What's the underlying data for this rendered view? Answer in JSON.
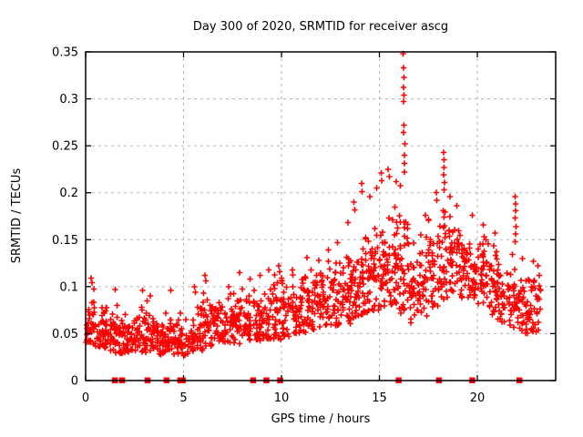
{
  "title": "Day 300 of 2020, SRMTID for receiver ascg",
  "colors": {
    "marker": "#ff0000",
    "grid": "#b3b3b3",
    "axis": "#000000",
    "background": "#ffffff",
    "text": "#000000"
  },
  "chart_data": {
    "type": "scatter",
    "title": "Day 300 of 2020, SRMTID for receiver ascg",
    "xlabel": "GPS time / hours",
    "ylabel": "SRMTID / TECUs",
    "xlim": [
      0,
      24
    ],
    "ylim": [
      0,
      0.35
    ],
    "xticks": [
      0,
      5,
      10,
      15,
      20
    ],
    "xtick_labels": [
      "0",
      "5",
      "10",
      "15",
      "20"
    ],
    "yticks": [
      0,
      0.05,
      0.1,
      0.15,
      0.2,
      0.25,
      0.3,
      0.35
    ],
    "ytick_labels": [
      "0",
      "0.05",
      "0.1",
      "0.15",
      "0.2",
      "0.25",
      "0.3",
      "0.35"
    ],
    "grid": true,
    "legend": "none",
    "marker": "plus",
    "marker_color": "#ff0000",
    "seed": 300,
    "density_bins": [
      [
        0.0,
        0.5,
        34,
        0.038,
        0.098,
        0.058
      ],
      [
        0.5,
        1.0,
        34,
        0.034,
        0.085,
        0.052
      ],
      [
        1.0,
        1.5,
        32,
        0.03,
        0.078,
        0.048
      ],
      [
        1.5,
        2.0,
        36,
        0.028,
        0.082,
        0.047
      ],
      [
        2.0,
        2.5,
        32,
        0.03,
        0.072,
        0.046
      ],
      [
        2.5,
        3.0,
        32,
        0.03,
        0.082,
        0.049
      ],
      [
        3.0,
        3.5,
        34,
        0.03,
        0.088,
        0.05
      ],
      [
        3.5,
        4.0,
        32,
        0.027,
        0.072,
        0.044
      ],
      [
        4.0,
        4.5,
        33,
        0.03,
        0.082,
        0.048
      ],
      [
        4.5,
        5.0,
        32,
        0.026,
        0.075,
        0.044
      ],
      [
        5.0,
        5.5,
        28,
        0.026,
        0.066,
        0.042
      ],
      [
        5.5,
        6.0,
        30,
        0.032,
        0.092,
        0.052
      ],
      [
        6.0,
        6.5,
        31,
        0.036,
        0.104,
        0.06
      ],
      [
        6.5,
        7.0,
        31,
        0.04,
        0.098,
        0.062
      ],
      [
        7.0,
        7.5,
        31,
        0.04,
        0.094,
        0.06
      ],
      [
        7.5,
        8.0,
        33,
        0.038,
        0.106,
        0.062
      ],
      [
        8.0,
        8.5,
        33,
        0.04,
        0.1,
        0.064
      ],
      [
        8.5,
        9.0,
        33,
        0.042,
        0.104,
        0.066
      ],
      [
        9.0,
        9.5,
        33,
        0.044,
        0.11,
        0.068
      ],
      [
        9.5,
        10.0,
        33,
        0.042,
        0.115,
        0.068
      ],
      [
        10.0,
        10.5,
        33,
        0.046,
        0.11,
        0.07
      ],
      [
        10.5,
        11.0,
        33,
        0.05,
        0.115,
        0.074
      ],
      [
        11.0,
        11.5,
        33,
        0.05,
        0.12,
        0.078
      ],
      [
        11.5,
        12.0,
        33,
        0.054,
        0.125,
        0.082
      ],
      [
        12.0,
        12.5,
        33,
        0.056,
        0.13,
        0.086
      ],
      [
        12.5,
        13.0,
        33,
        0.058,
        0.136,
        0.09
      ],
      [
        13.0,
        13.5,
        34,
        0.06,
        0.142,
        0.094
      ],
      [
        13.5,
        14.0,
        35,
        0.064,
        0.152,
        0.1
      ],
      [
        14.0,
        14.5,
        35,
        0.07,
        0.162,
        0.108
      ],
      [
        14.5,
        15.0,
        35,
        0.074,
        0.172,
        0.112
      ],
      [
        15.0,
        15.5,
        37,
        0.078,
        0.192,
        0.12
      ],
      [
        15.5,
        16.0,
        37,
        0.08,
        0.202,
        0.126
      ],
      [
        16.0,
        16.5,
        37,
        0.07,
        0.222,
        0.122
      ],
      [
        16.5,
        17.0,
        32,
        0.06,
        0.16,
        0.1
      ],
      [
        17.0,
        17.5,
        32,
        0.068,
        0.172,
        0.108
      ],
      [
        17.5,
        18.0,
        33,
        0.078,
        0.182,
        0.116
      ],
      [
        18.0,
        18.5,
        35,
        0.086,
        0.2,
        0.126
      ],
      [
        18.5,
        19.0,
        35,
        0.09,
        0.188,
        0.13
      ],
      [
        19.0,
        19.5,
        33,
        0.088,
        0.172,
        0.124
      ],
      [
        19.5,
        20.0,
        33,
        0.084,
        0.166,
        0.118
      ],
      [
        20.0,
        20.5,
        33,
        0.078,
        0.156,
        0.112
      ],
      [
        20.5,
        21.0,
        31,
        0.07,
        0.15,
        0.104
      ],
      [
        21.0,
        21.5,
        30,
        0.062,
        0.14,
        0.094
      ],
      [
        21.5,
        22.0,
        30,
        0.056,
        0.136,
        0.088
      ],
      [
        22.0,
        22.5,
        30,
        0.05,
        0.122,
        0.078
      ],
      [
        22.5,
        23.0,
        31,
        0.046,
        0.124,
        0.076
      ],
      [
        23.0,
        23.2,
        14,
        0.05,
        0.12,
        0.08
      ]
    ],
    "outliers": [
      [
        0.28,
        0.109
      ],
      [
        0.33,
        0.104
      ],
      [
        1.5,
        0.097
      ],
      [
        2.9,
        0.096
      ],
      [
        3.3,
        0.09
      ],
      [
        4.35,
        0.096
      ],
      [
        5.55,
        0.1
      ],
      [
        5.6,
        0.094
      ],
      [
        6.1,
        0.112
      ],
      [
        6.15,
        0.106
      ],
      [
        7.3,
        0.1
      ],
      [
        7.85,
        0.115
      ],
      [
        8.4,
        0.108
      ],
      [
        8.9,
        0.112
      ],
      [
        9.35,
        0.118
      ],
      [
        9.85,
        0.122
      ],
      [
        9.9,
        0.116
      ],
      [
        10.55,
        0.118
      ],
      [
        11.3,
        0.131
      ],
      [
        11.9,
        0.128
      ],
      [
        12.4,
        0.139
      ],
      [
        12.85,
        0.147
      ],
      [
        13.4,
        0.168
      ],
      [
        13.7,
        0.19
      ],
      [
        13.75,
        0.182
      ],
      [
        14.1,
        0.21
      ],
      [
        14.12,
        0.201
      ],
      [
        14.5,
        0.196
      ],
      [
        14.85,
        0.205
      ],
      [
        15.1,
        0.221
      ],
      [
        15.12,
        0.213
      ],
      [
        15.45,
        0.225
      ],
      [
        15.5,
        0.217
      ],
      [
        15.85,
        0.212
      ],
      [
        16.22,
        0.348
      ],
      [
        16.24,
        0.333
      ],
      [
        16.25,
        0.323
      ],
      [
        16.23,
        0.312
      ],
      [
        16.26,
        0.304
      ],
      [
        16.24,
        0.297
      ],
      [
        16.25,
        0.272
      ],
      [
        16.23,
        0.264
      ],
      [
        16.3,
        0.252
      ],
      [
        16.28,
        0.24
      ],
      [
        16.27,
        0.231
      ],
      [
        16.29,
        0.222
      ],
      [
        17.35,
        0.176
      ],
      [
        17.9,
        0.2
      ],
      [
        17.92,
        0.192
      ],
      [
        18.28,
        0.243
      ],
      [
        18.3,
        0.235
      ],
      [
        18.31,
        0.227
      ],
      [
        18.29,
        0.219
      ],
      [
        18.32,
        0.211
      ],
      [
        18.3,
        0.203
      ],
      [
        18.6,
        0.196
      ],
      [
        18.95,
        0.186
      ],
      [
        19.75,
        0.176
      ],
      [
        20.3,
        0.166
      ],
      [
        20.9,
        0.157
      ],
      [
        21.93,
        0.196
      ],
      [
        21.95,
        0.188
      ],
      [
        21.96,
        0.181
      ],
      [
        21.94,
        0.173
      ],
      [
        21.97,
        0.164
      ],
      [
        21.95,
        0.156
      ],
      [
        21.93,
        0.148
      ],
      [
        22.3,
        0.13
      ],
      [
        22.85,
        0.127
      ],
      [
        23.1,
        0.122
      ]
    ],
    "zero_markers_hours": [
      1.48,
      1.85,
      3.15,
      4.12,
      4.82,
      4.95,
      8.54,
      9.22,
      9.92,
      15.97,
      18.03,
      19.73,
      22.14
    ]
  }
}
